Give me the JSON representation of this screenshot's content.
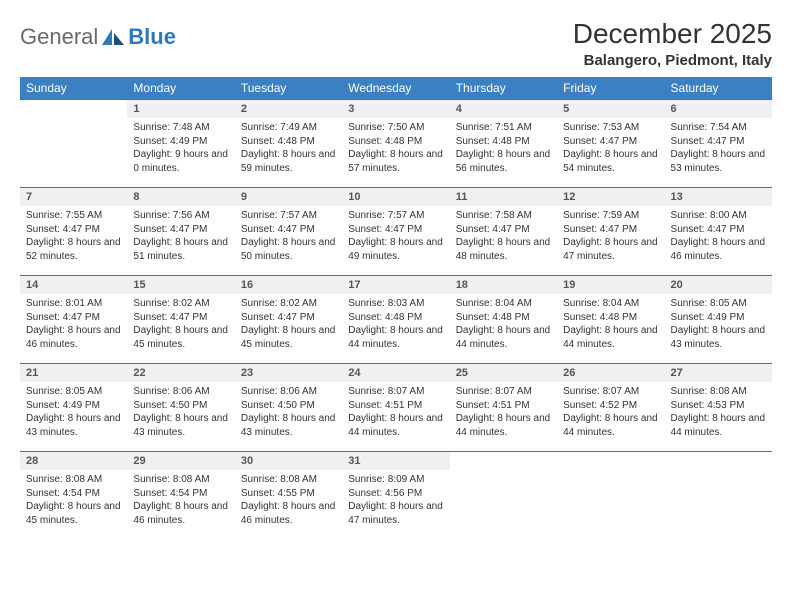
{
  "brand": {
    "general": "General",
    "blue": "Blue"
  },
  "title": "December 2025",
  "location": "Balangero, Piedmont, Italy",
  "colors": {
    "header_bg": "#3a80c3",
    "header_text": "#ffffff",
    "cell_border": "#2f78b9",
    "daynum_bg": "#eef0f2",
    "body_text": "#333333",
    "logo_gray": "#6a6a6a",
    "logo_blue": "#2f78b9"
  },
  "typography": {
    "title_fontsize": 28,
    "location_fontsize": 15,
    "weekday_fontsize": 12,
    "daynum_fontsize": 11,
    "body_fontsize": 10
  },
  "weekdays": [
    "Sunday",
    "Monday",
    "Tuesday",
    "Wednesday",
    "Thursday",
    "Friday",
    "Saturday"
  ],
  "weeks": [
    [
      {
        "n": "",
        "sunrise": "",
        "sunset": "",
        "daylight": "",
        "empty": true
      },
      {
        "n": "1",
        "sunrise": "Sunrise: 7:48 AM",
        "sunset": "Sunset: 4:49 PM",
        "daylight": "Daylight: 9 hours and 0 minutes."
      },
      {
        "n": "2",
        "sunrise": "Sunrise: 7:49 AM",
        "sunset": "Sunset: 4:48 PM",
        "daylight": "Daylight: 8 hours and 59 minutes."
      },
      {
        "n": "3",
        "sunrise": "Sunrise: 7:50 AM",
        "sunset": "Sunset: 4:48 PM",
        "daylight": "Daylight: 8 hours and 57 minutes."
      },
      {
        "n": "4",
        "sunrise": "Sunrise: 7:51 AM",
        "sunset": "Sunset: 4:48 PM",
        "daylight": "Daylight: 8 hours and 56 minutes."
      },
      {
        "n": "5",
        "sunrise": "Sunrise: 7:53 AM",
        "sunset": "Sunset: 4:47 PM",
        "daylight": "Daylight: 8 hours and 54 minutes."
      },
      {
        "n": "6",
        "sunrise": "Sunrise: 7:54 AM",
        "sunset": "Sunset: 4:47 PM",
        "daylight": "Daylight: 8 hours and 53 minutes."
      }
    ],
    [
      {
        "n": "7",
        "sunrise": "Sunrise: 7:55 AM",
        "sunset": "Sunset: 4:47 PM",
        "daylight": "Daylight: 8 hours and 52 minutes."
      },
      {
        "n": "8",
        "sunrise": "Sunrise: 7:56 AM",
        "sunset": "Sunset: 4:47 PM",
        "daylight": "Daylight: 8 hours and 51 minutes."
      },
      {
        "n": "9",
        "sunrise": "Sunrise: 7:57 AM",
        "sunset": "Sunset: 4:47 PM",
        "daylight": "Daylight: 8 hours and 50 minutes."
      },
      {
        "n": "10",
        "sunrise": "Sunrise: 7:57 AM",
        "sunset": "Sunset: 4:47 PM",
        "daylight": "Daylight: 8 hours and 49 minutes."
      },
      {
        "n": "11",
        "sunrise": "Sunrise: 7:58 AM",
        "sunset": "Sunset: 4:47 PM",
        "daylight": "Daylight: 8 hours and 48 minutes."
      },
      {
        "n": "12",
        "sunrise": "Sunrise: 7:59 AM",
        "sunset": "Sunset: 4:47 PM",
        "daylight": "Daylight: 8 hours and 47 minutes."
      },
      {
        "n": "13",
        "sunrise": "Sunrise: 8:00 AM",
        "sunset": "Sunset: 4:47 PM",
        "daylight": "Daylight: 8 hours and 46 minutes."
      }
    ],
    [
      {
        "n": "14",
        "sunrise": "Sunrise: 8:01 AM",
        "sunset": "Sunset: 4:47 PM",
        "daylight": "Daylight: 8 hours and 46 minutes."
      },
      {
        "n": "15",
        "sunrise": "Sunrise: 8:02 AM",
        "sunset": "Sunset: 4:47 PM",
        "daylight": "Daylight: 8 hours and 45 minutes."
      },
      {
        "n": "16",
        "sunrise": "Sunrise: 8:02 AM",
        "sunset": "Sunset: 4:47 PM",
        "daylight": "Daylight: 8 hours and 45 minutes."
      },
      {
        "n": "17",
        "sunrise": "Sunrise: 8:03 AM",
        "sunset": "Sunset: 4:48 PM",
        "daylight": "Daylight: 8 hours and 44 minutes."
      },
      {
        "n": "18",
        "sunrise": "Sunrise: 8:04 AM",
        "sunset": "Sunset: 4:48 PM",
        "daylight": "Daylight: 8 hours and 44 minutes."
      },
      {
        "n": "19",
        "sunrise": "Sunrise: 8:04 AM",
        "sunset": "Sunset: 4:48 PM",
        "daylight": "Daylight: 8 hours and 44 minutes."
      },
      {
        "n": "20",
        "sunrise": "Sunrise: 8:05 AM",
        "sunset": "Sunset: 4:49 PM",
        "daylight": "Daylight: 8 hours and 43 minutes."
      }
    ],
    [
      {
        "n": "21",
        "sunrise": "Sunrise: 8:05 AM",
        "sunset": "Sunset: 4:49 PM",
        "daylight": "Daylight: 8 hours and 43 minutes."
      },
      {
        "n": "22",
        "sunrise": "Sunrise: 8:06 AM",
        "sunset": "Sunset: 4:50 PM",
        "daylight": "Daylight: 8 hours and 43 minutes."
      },
      {
        "n": "23",
        "sunrise": "Sunrise: 8:06 AM",
        "sunset": "Sunset: 4:50 PM",
        "daylight": "Daylight: 8 hours and 43 minutes."
      },
      {
        "n": "24",
        "sunrise": "Sunrise: 8:07 AM",
        "sunset": "Sunset: 4:51 PM",
        "daylight": "Daylight: 8 hours and 44 minutes."
      },
      {
        "n": "25",
        "sunrise": "Sunrise: 8:07 AM",
        "sunset": "Sunset: 4:51 PM",
        "daylight": "Daylight: 8 hours and 44 minutes."
      },
      {
        "n": "26",
        "sunrise": "Sunrise: 8:07 AM",
        "sunset": "Sunset: 4:52 PM",
        "daylight": "Daylight: 8 hours and 44 minutes."
      },
      {
        "n": "27",
        "sunrise": "Sunrise: 8:08 AM",
        "sunset": "Sunset: 4:53 PM",
        "daylight": "Daylight: 8 hours and 44 minutes."
      }
    ],
    [
      {
        "n": "28",
        "sunrise": "Sunrise: 8:08 AM",
        "sunset": "Sunset: 4:54 PM",
        "daylight": "Daylight: 8 hours and 45 minutes."
      },
      {
        "n": "29",
        "sunrise": "Sunrise: 8:08 AM",
        "sunset": "Sunset: 4:54 PM",
        "daylight": "Daylight: 8 hours and 46 minutes."
      },
      {
        "n": "30",
        "sunrise": "Sunrise: 8:08 AM",
        "sunset": "Sunset: 4:55 PM",
        "daylight": "Daylight: 8 hours and 46 minutes."
      },
      {
        "n": "31",
        "sunrise": "Sunrise: 8:09 AM",
        "sunset": "Sunset: 4:56 PM",
        "daylight": "Daylight: 8 hours and 47 minutes."
      },
      {
        "n": "",
        "sunrise": "",
        "sunset": "",
        "daylight": "",
        "empty": true
      },
      {
        "n": "",
        "sunrise": "",
        "sunset": "",
        "daylight": "",
        "empty": true
      },
      {
        "n": "",
        "sunrise": "",
        "sunset": "",
        "daylight": "",
        "empty": true
      }
    ]
  ]
}
